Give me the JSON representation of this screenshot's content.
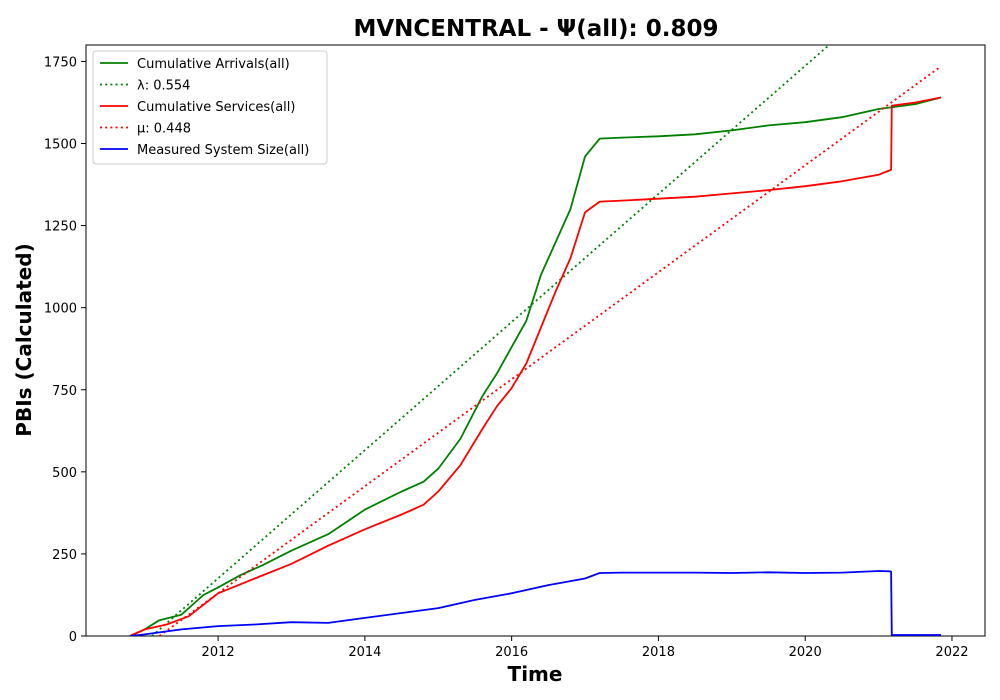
{
  "chart_data": {
    "type": "line",
    "title": "MVNCENTRAL -  Ψ(all): 0.809",
    "xlabel": "Time",
    "ylabel": "PBIs (Calculated)",
    "xlim": [
      2010.2,
      2022.45
    ],
    "ylim": [
      0,
      1800
    ],
    "x_ticks": [
      2012,
      2014,
      2016,
      2018,
      2020,
      2022
    ],
    "y_ticks": [
      0,
      250,
      500,
      750,
      1000,
      1250,
      1500,
      1750
    ],
    "grid": false,
    "legend_position": "top-left",
    "series": [
      {
        "name": "Cumulative Arrivals(all)",
        "style": "solid",
        "color": "#008000",
        "x": [
          2010.8,
          2011.0,
          2011.2,
          2011.5,
          2011.8,
          2012.0,
          2012.3,
          2012.6,
          2013.0,
          2013.5,
          2014.0,
          2014.5,
          2014.8,
          2015.0,
          2015.3,
          2015.6,
          2015.8,
          2016.0,
          2016.2,
          2016.4,
          2016.6,
          2016.8,
          2017.0,
          2017.2,
          2017.5,
          2018.0,
          2018.5,
          2019.0,
          2019.5,
          2020.0,
          2020.5,
          2021.0,
          2021.5,
          2021.85
        ],
        "y": [
          0,
          20,
          48,
          65,
          125,
          148,
          185,
          215,
          260,
          310,
          385,
          440,
          470,
          510,
          600,
          730,
          800,
          880,
          960,
          1100,
          1200,
          1300,
          1460,
          1515,
          1518,
          1522,
          1528,
          1540,
          1555,
          1565,
          1580,
          1605,
          1620,
          1640
        ]
      },
      {
        "name": "λ: 0.554",
        "style": "dotted",
        "color": "#008000",
        "x": [
          2011.1,
          2020.35
        ],
        "y": [
          0,
          1805
        ]
      },
      {
        "name": "Cumulative Services(all)",
        "style": "solid",
        "color": "#ff0000",
        "x": [
          2010.8,
          2011.0,
          2011.3,
          2011.6,
          2011.8,
          2012.0,
          2012.5,
          2013.0,
          2013.5,
          2014.0,
          2014.5,
          2014.8,
          2015.0,
          2015.3,
          2015.6,
          2015.8,
          2016.0,
          2016.2,
          2016.4,
          2016.6,
          2016.8,
          2017.0,
          2017.2,
          2017.5,
          2018.0,
          2018.5,
          2019.0,
          2019.5,
          2020.0,
          2020.5,
          2021.0,
          2021.17,
          2021.18,
          2021.5,
          2021.85
        ],
        "y": [
          0,
          20,
          35,
          60,
          95,
          130,
          175,
          220,
          275,
          325,
          370,
          400,
          440,
          520,
          630,
          700,
          755,
          830,
          940,
          1050,
          1150,
          1290,
          1323,
          1326,
          1332,
          1338,
          1348,
          1358,
          1370,
          1385,
          1405,
          1420,
          1615,
          1625,
          1640
        ]
      },
      {
        "name": "μ: 0.448",
        "style": "dotted",
        "color": "#ff0000",
        "x": [
          2011.2,
          2021.85
        ],
        "y": [
          0,
          1735
        ]
      },
      {
        "name": "Measured System Size(all)",
        "style": "solid",
        "color": "#0000ff",
        "x": [
          2010.8,
          2011.0,
          2011.5,
          2012.0,
          2012.5,
          2013.0,
          2013.5,
          2014.0,
          2014.5,
          2015.0,
          2015.5,
          2016.0,
          2016.5,
          2017.0,
          2017.2,
          2017.5,
          2018.0,
          2018.5,
          2019.0,
          2019.5,
          2020.0,
          2020.5,
          2021.0,
          2021.15,
          2021.17,
          2021.18,
          2021.85
        ],
        "y": [
          0,
          5,
          20,
          30,
          35,
          42,
          40,
          55,
          70,
          85,
          110,
          130,
          155,
          175,
          192,
          193,
          193,
          193,
          192,
          194,
          192,
          193,
          198,
          197,
          196,
          3,
          3
        ]
      }
    ]
  }
}
